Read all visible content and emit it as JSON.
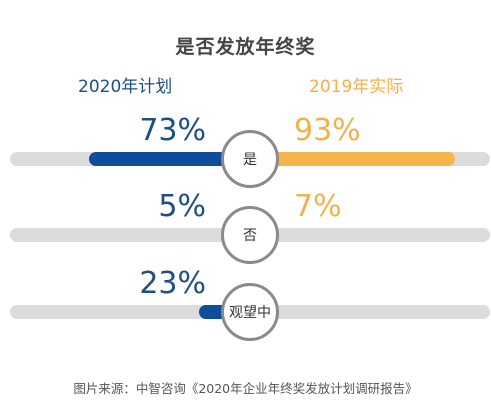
{
  "chart_data": {
    "type": "bar",
    "title": "是否发放年终奖",
    "categories": [
      "是",
      "否",
      "观望中"
    ],
    "series": [
      {
        "name": "2020年计划",
        "values": [
          73,
          5,
          23
        ],
        "labels": [
          "73%",
          "5%",
          "23%"
        ],
        "color": "#0d4d9a"
      },
      {
        "name": "2019年实际",
        "values": [
          93,
          7,
          null
        ],
        "labels": [
          "93%",
          "7%",
          ""
        ],
        "color": "#f5b54a"
      }
    ],
    "ylim": [
      0,
      100
    ],
    "unit": "%"
  },
  "colors": {
    "track": "#dcdcdc",
    "left_text": "#1f4e82",
    "right_text": "#f0b24a"
  },
  "source": "图片来源：中智咨询《2020年企业年终奖发放计划调研报告》"
}
